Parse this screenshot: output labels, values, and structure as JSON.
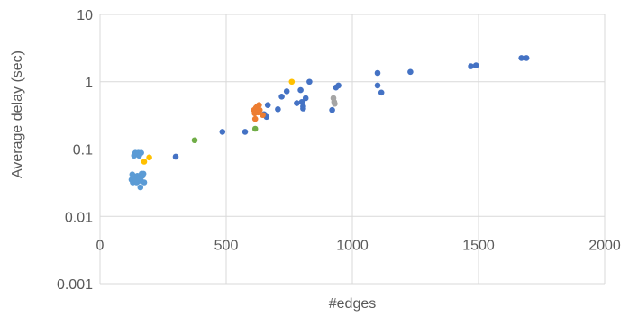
{
  "chart_data": {
    "type": "scatter",
    "title": "",
    "xlabel": "#edges",
    "ylabel": "Average delay (sec)",
    "xlim": [
      0,
      2000
    ],
    "ylim": [
      0.001,
      10
    ],
    "yscale": "log",
    "grid": true,
    "legend": "none",
    "x_ticks": [
      "0",
      "500",
      "1000",
      "1500",
      "2000"
    ],
    "y_ticks": [
      "0.001",
      "0.01",
      "0.1",
      "1",
      "10"
    ],
    "series": [
      {
        "color": "#4472c4",
        "points": [
          [
            300,
            0.077
          ],
          [
            485,
            0.18
          ],
          [
            575,
            0.18
          ],
          [
            650,
            0.33
          ],
          [
            660,
            0.3
          ],
          [
            665,
            0.45
          ],
          [
            705,
            0.39
          ],
          [
            720,
            0.6
          ],
          [
            740,
            0.72
          ],
          [
            780,
            0.48
          ],
          [
            795,
            0.75
          ],
          [
            800,
            0.5
          ],
          [
            805,
            0.43
          ],
          [
            805,
            0.4
          ],
          [
            815,
            0.57
          ],
          [
            830,
            1.0
          ],
          [
            920,
            0.38
          ],
          [
            935,
            0.82
          ],
          [
            945,
            0.88
          ],
          [
            1100,
            1.35
          ],
          [
            1100,
            0.88
          ],
          [
            1115,
            0.69
          ],
          [
            1230,
            1.4
          ],
          [
            1470,
            1.7
          ],
          [
            1490,
            1.75
          ],
          [
            1670,
            2.25
          ],
          [
            1690,
            2.25
          ]
        ]
      },
      {
        "color": "#5b9bd5",
        "points": [
          [
            125,
            0.035
          ],
          [
            128,
            0.042
          ],
          [
            130,
            0.032
          ],
          [
            132,
            0.038
          ],
          [
            135,
            0.08
          ],
          [
            137,
            0.035
          ],
          [
            140,
            0.088
          ],
          [
            142,
            0.034
          ],
          [
            145,
            0.032
          ],
          [
            148,
            0.04
          ],
          [
            150,
            0.033
          ],
          [
            152,
            0.088
          ],
          [
            155,
            0.036
          ],
          [
            157,
            0.038
          ],
          [
            160,
            0.027
          ],
          [
            162,
            0.034
          ],
          [
            163,
            0.088
          ],
          [
            165,
            0.043
          ],
          [
            168,
            0.04
          ],
          [
            172,
            0.043
          ],
          [
            175,
            0.032
          ],
          [
            155,
            0.08
          ]
        ]
      },
      {
        "color": "#ed7d31",
        "points": [
          [
            610,
            0.38
          ],
          [
            613,
            0.34
          ],
          [
            615,
            0.28
          ],
          [
            618,
            0.41
          ],
          [
            620,
            0.36
          ],
          [
            623,
            0.43
          ],
          [
            627,
            0.35
          ],
          [
            630,
            0.45
          ],
          [
            633,
            0.38
          ],
          [
            645,
            0.32
          ]
        ]
      },
      {
        "color": "#ffc000",
        "points": [
          [
            175,
            0.065
          ],
          [
            195,
            0.075
          ],
          [
            760,
            1.0
          ]
        ]
      },
      {
        "color": "#70ad47",
        "points": [
          [
            375,
            0.135
          ],
          [
            615,
            0.2
          ]
        ]
      },
      {
        "color": "#a5a5a5",
        "points": [
          [
            925,
            0.57
          ],
          [
            928,
            0.5
          ],
          [
            930,
            0.47
          ]
        ]
      }
    ]
  }
}
